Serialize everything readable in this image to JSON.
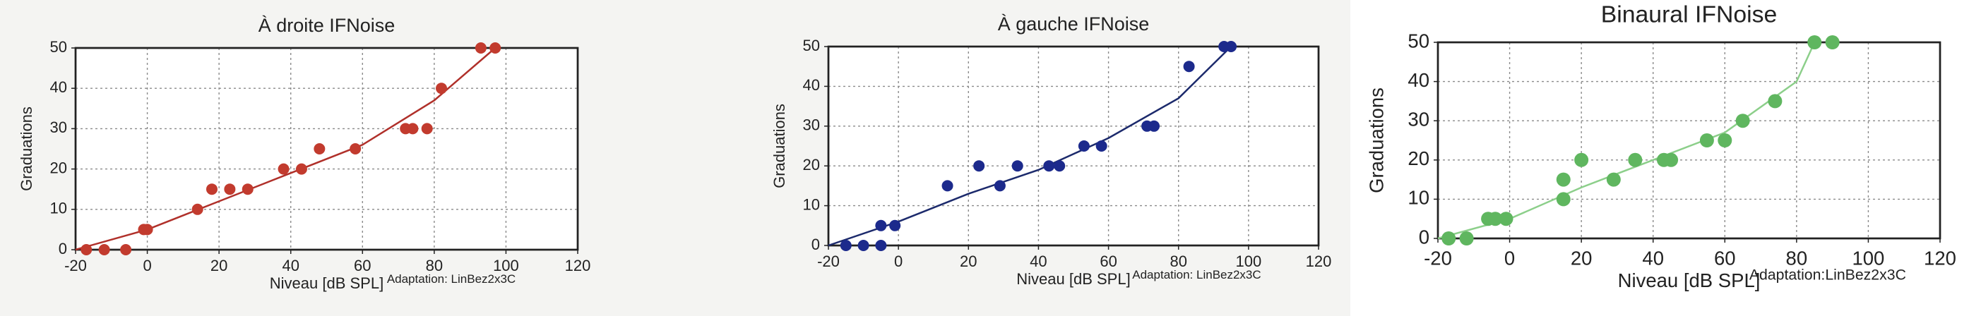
{
  "chart_data": [
    {
      "type": "scatter",
      "title": "À droite IFNoise",
      "x_label": "Niveau [dB SPL]",
      "y_label": "Graduations",
      "annotation": "Adaptation: LinBez2x3C",
      "xlim": [
        -20,
        120
      ],
      "ylim": [
        0,
        50
      ],
      "xticks": [
        -20,
        0,
        20,
        40,
        60,
        80,
        100,
        120
      ],
      "yticks": [
        0,
        10,
        20,
        30,
        40,
        50
      ],
      "grid": true,
      "series": [
        {
          "color": "#c23b2e",
          "x": [
            -17,
            -12,
            -6,
            -1,
            0,
            14,
            18,
            23,
            28,
            38,
            43,
            48,
            58,
            72,
            74,
            78,
            82,
            93,
            97
          ],
          "y": [
            0,
            0,
            0,
            5,
            5,
            10,
            15,
            15,
            15,
            20,
            20,
            25,
            25,
            30,
            30,
            30,
            40,
            50,
            50
          ]
        }
      ],
      "fit": {
        "color": "#b0302a",
        "x": [
          -20,
          0,
          20,
          40,
          60,
          80,
          97
        ],
        "y": [
          0,
          5,
          12,
          19,
          26,
          37,
          50
        ]
      }
    },
    {
      "type": "scatter",
      "title": "À gauche IFNoise",
      "x_label": "Niveau [dB SPL]",
      "y_label": "Graduations",
      "annotation": "Adaptation: LinBez2x3C",
      "xlim": [
        -20,
        120
      ],
      "ylim": [
        0,
        50
      ],
      "xticks": [
        -20,
        0,
        20,
        40,
        60,
        80,
        100,
        120
      ],
      "yticks": [
        0,
        10,
        20,
        30,
        40,
        50
      ],
      "grid": true,
      "series": [
        {
          "color": "#1c2a8c",
          "x": [
            -15,
            -10,
            -5,
            -5,
            -1,
            14,
            23,
            29,
            34,
            43,
            46,
            53,
            58,
            71,
            73,
            83,
            93,
            95
          ],
          "y": [
            0,
            0,
            0,
            5,
            5,
            15,
            20,
            15,
            20,
            20,
            20,
            25,
            25,
            30,
            30,
            45,
            50,
            50
          ]
        }
      ],
      "fit": {
        "color": "#1c2a6c",
        "x": [
          -20,
          0,
          20,
          40,
          60,
          80,
          95
        ],
        "y": [
          0,
          6,
          13,
          19,
          27,
          37,
          50
        ]
      }
    },
    {
      "type": "scatter",
      "title": "Binaural IFNoise",
      "x_label": "Niveau [dB SPL]",
      "y_label": "Graduations",
      "annotation": "Adaptation:LinBez2x3C",
      "xlim": [
        -20,
        120
      ],
      "ylim": [
        0,
        50
      ],
      "xticks": [
        -20,
        0,
        20,
        40,
        60,
        80,
        100,
        120
      ],
      "yticks": [
        0,
        10,
        20,
        30,
        40,
        50
      ],
      "grid": true,
      "series": [
        {
          "color": "#5fb65f",
          "x": [
            -17,
            -12,
            -6,
            -4,
            -1,
            15,
            15,
            20,
            29,
            35,
            43,
            45,
            55,
            60,
            65,
            74,
            85,
            90
          ],
          "y": [
            0,
            0,
            5,
            5,
            5,
            10,
            15,
            20,
            15,
            20,
            20,
            20,
            25,
            25,
            30,
            35,
            50,
            50
          ]
        }
      ],
      "fit": {
        "color": "#8ccf8a",
        "x": [
          -20,
          0,
          20,
          40,
          60,
          80,
          85
        ],
        "y": [
          0,
          5,
          13,
          20,
          27,
          40,
          50
        ]
      }
    }
  ]
}
